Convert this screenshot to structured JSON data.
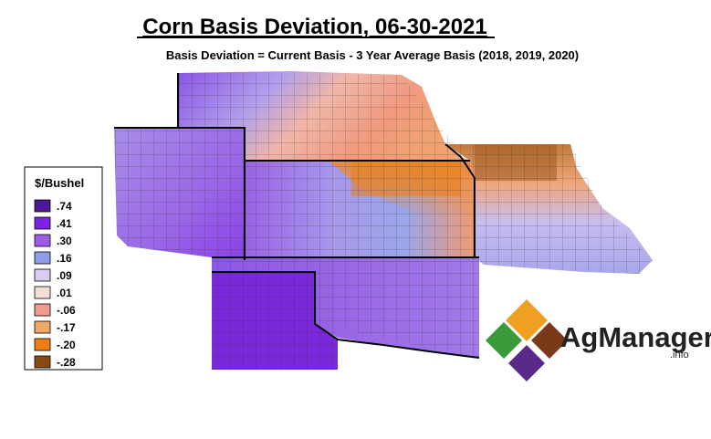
{
  "title": "Corn Basis Deviation, 06-30-2021",
  "subtitle": "Basis Deviation = Current Basis - 3 Year Average Basis (2018, 2019, 2020)",
  "legend": {
    "title": "$/Bushel",
    "items": [
      {
        "label": ".74",
        "color": "#4a1a94"
      },
      {
        "label": ".41",
        "color": "#7b22e6"
      },
      {
        "label": ".30",
        "color": "#9b5de8"
      },
      {
        "label": ".16",
        "color": "#8f9ce8"
      },
      {
        "label": ".09",
        "color": "#d9cdf2"
      },
      {
        "label": ".01",
        "color": "#f3dfd3"
      },
      {
        "label": "-.06",
        "color": "#f19a8e"
      },
      {
        "label": "-.17",
        "color": "#f0a866"
      },
      {
        "label": "-.20",
        "color": "#ee7d12"
      },
      {
        "label": "-.28",
        "color": "#8a4a12"
      }
    ]
  },
  "logo": {
    "name": "AgManager",
    "suffix": ".info"
  }
}
